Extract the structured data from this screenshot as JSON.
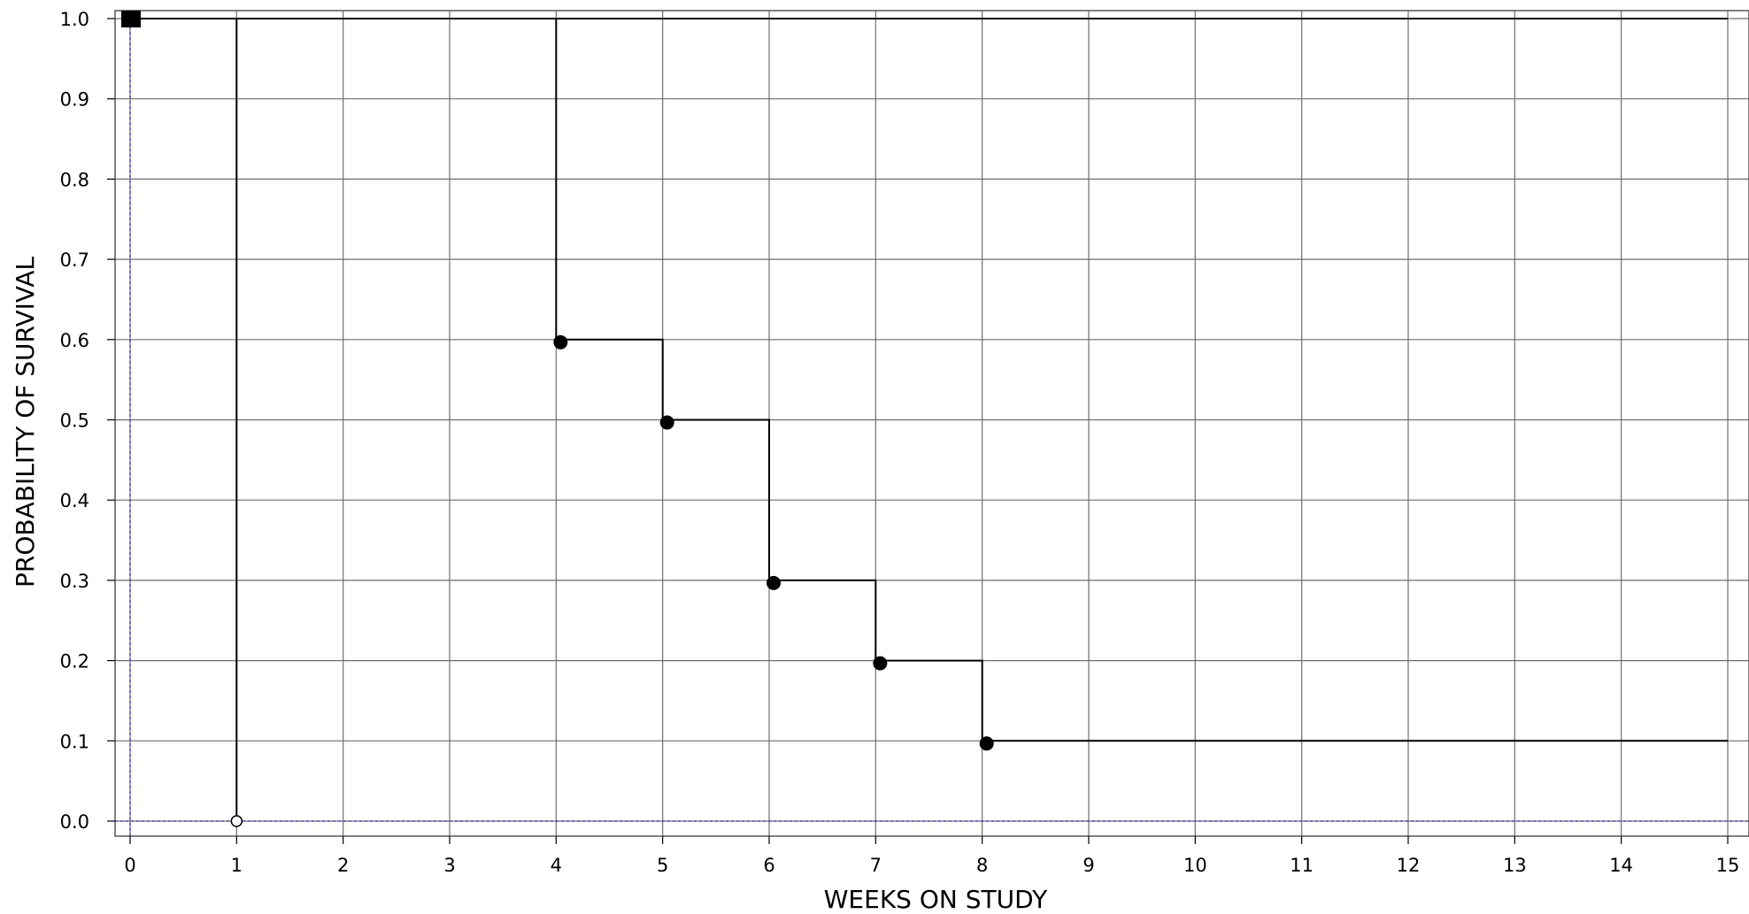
{
  "chart_data": {
    "type": "line",
    "title": "",
    "xlabel": "WEEKS ON STUDY",
    "ylabel": "PROBABILITY OF SURVIVAL",
    "xlim": [
      0,
      15
    ],
    "ylim": [
      0.0,
      1.0
    ],
    "x_ticks": [
      "0",
      "1",
      "2",
      "3",
      "4",
      "5",
      "6",
      "7",
      "8",
      "9",
      "10",
      "11",
      "12",
      "13",
      "14",
      "15"
    ],
    "y_ticks": [
      "0.0",
      "0.1",
      "0.2",
      "0.3",
      "0.4",
      "0.5",
      "0.6",
      "0.7",
      "0.8",
      "0.9",
      "1.0"
    ],
    "grid": true,
    "series": [
      {
        "style": "step",
        "color": "#000000",
        "x": [
          0,
          1,
          1
        ],
        "y": [
          1.0,
          1.0,
          0.0
        ],
        "markers": [
          {
            "x": 0,
            "y": 1.0,
            "shape": "square-filled"
          },
          {
            "x": 1,
            "y": 0.0,
            "shape": "circle-open"
          }
        ]
      },
      {
        "style": "step",
        "color": "#000000",
        "x": [
          0,
          4,
          4,
          5,
          5,
          6,
          6,
          7,
          7,
          8,
          8,
          15
        ],
        "y": [
          1.0,
          1.0,
          0.6,
          0.6,
          0.5,
          0.5,
          0.3,
          0.3,
          0.2,
          0.2,
          0.1,
          0.1
        ],
        "markers": [
          {
            "x": 4,
            "y": 0.6,
            "shape": "circle-filled"
          },
          {
            "x": 5,
            "y": 0.5,
            "shape": "circle-filled"
          },
          {
            "x": 6,
            "y": 0.3,
            "shape": "circle-filled"
          },
          {
            "x": 7,
            "y": 0.2,
            "shape": "circle-filled"
          },
          {
            "x": 8,
            "y": 0.1,
            "shape": "circle-filled"
          }
        ]
      },
      {
        "style": "flat",
        "color": "#000000",
        "x": [
          0,
          15
        ],
        "y": [
          1.0,
          1.0
        ]
      }
    ],
    "reference_lines": [
      {
        "orientation": "vertical",
        "value": 0,
        "color": "#3333cc",
        "dashed": true
      },
      {
        "orientation": "horizontal",
        "value": 0.0,
        "color": "#3333cc",
        "dashed": true
      }
    ]
  }
}
